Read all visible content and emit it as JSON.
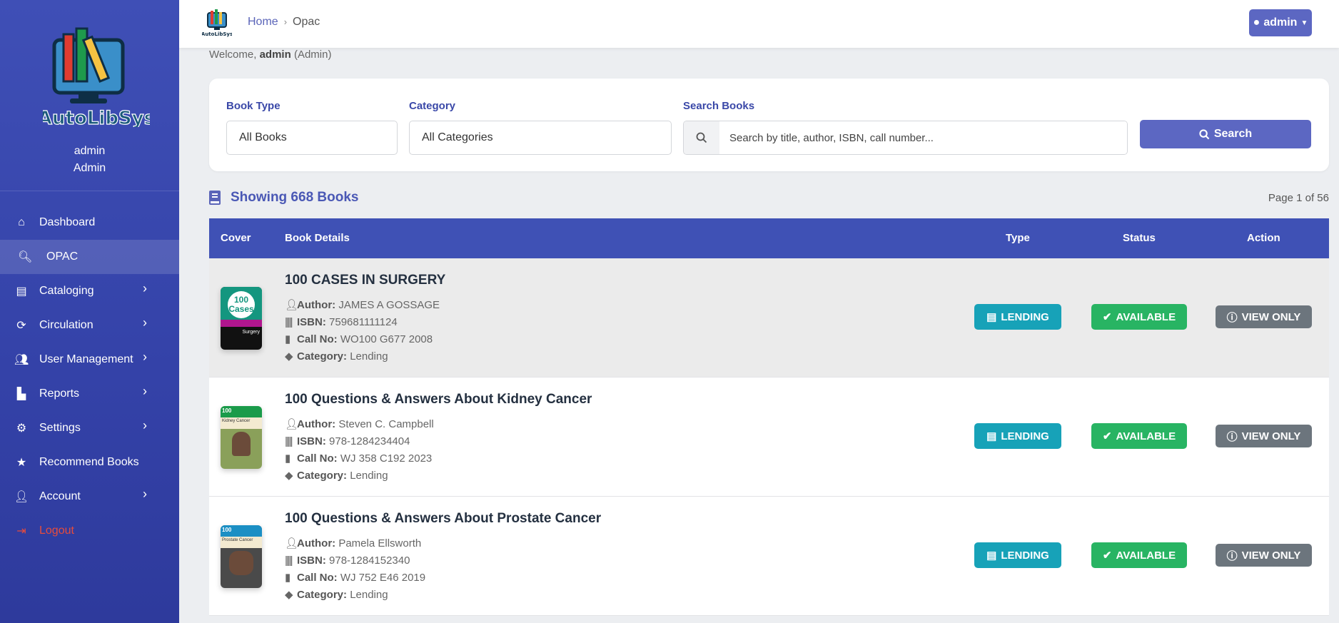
{
  "sidebar": {
    "logo_text": "AutoLibSys",
    "user_name": "admin",
    "user_role": "Admin",
    "items": [
      {
        "label": "Dashboard",
        "icon": "home-icon",
        "has_submenu": false
      },
      {
        "label": "OPAC",
        "icon": "search-icon",
        "has_submenu": false,
        "active": true
      },
      {
        "label": "Cataloging",
        "icon": "book-icon",
        "has_submenu": true
      },
      {
        "label": "Circulation",
        "icon": "sync-icon",
        "has_submenu": true
      },
      {
        "label": "User Management",
        "icon": "users-icon",
        "has_submenu": true
      },
      {
        "label": "Reports",
        "icon": "chart-icon",
        "has_submenu": true
      },
      {
        "label": "Settings",
        "icon": "gear-icon",
        "has_submenu": true
      },
      {
        "label": "Recommend Books",
        "icon": "star-icon",
        "has_submenu": false
      },
      {
        "label": "Account",
        "icon": "user-icon",
        "has_submenu": true
      },
      {
        "label": "Logout",
        "icon": "logout-icon",
        "has_submenu": false
      }
    ]
  },
  "header": {
    "logo_text": "AutoLibSys",
    "breadcrumb": [
      "Home",
      "Opac"
    ],
    "user_button": "admin"
  },
  "welcome": {
    "prefix": "Welcome,",
    "name": "admin",
    "role": "(Admin)"
  },
  "filters": {
    "book_type_label": "Book Type",
    "book_type_value": "All Books",
    "category_label": "Category",
    "category_value": "All Categories",
    "search_label": "Search Books",
    "search_placeholder": "Search by title, author, ISBN, call number...",
    "search_button": "Search"
  },
  "results": {
    "heading": "Showing 668 Books",
    "page_info": "Page 1 of 56"
  },
  "table": {
    "columns": [
      "Cover",
      "Book Details",
      "Type",
      "Status",
      "Action"
    ],
    "field_labels": {
      "author": "Author:",
      "isbn": "ISBN:",
      "call_no": "Call No:",
      "category": "Category:"
    },
    "rows": [
      {
        "title": "100 CASES IN SURGERY",
        "author": "JAMES A GOSSAGE",
        "isbn": "759681111124",
        "call_no": "WO100 G677 2008",
        "category": "Lending",
        "type": "LENDING",
        "status": "AVAILABLE",
        "action": "VIEW ONLY"
      },
      {
        "title": "100 Questions & Answers About Kidney Cancer",
        "author": "Steven C. Campbell",
        "isbn": "978-1284234404",
        "call_no": "WJ 358 C192 2023",
        "category": "Lending",
        "type": "LENDING",
        "status": "AVAILABLE",
        "action": "VIEW ONLY"
      },
      {
        "title": "100 Questions & Answers About Prostate Cancer",
        "author": "Pamela Ellsworth",
        "isbn": "978-1284152340",
        "call_no": "WJ 752 E46 2019",
        "category": "Lending",
        "type": "LENDING",
        "status": "AVAILABLE",
        "action": "VIEW ONLY"
      }
    ]
  },
  "colors": {
    "primary": "#3f51b5",
    "lending": "#17a2b8",
    "available": "#28b463",
    "view_only": "#6c757d",
    "logout": "#e74c3c"
  }
}
